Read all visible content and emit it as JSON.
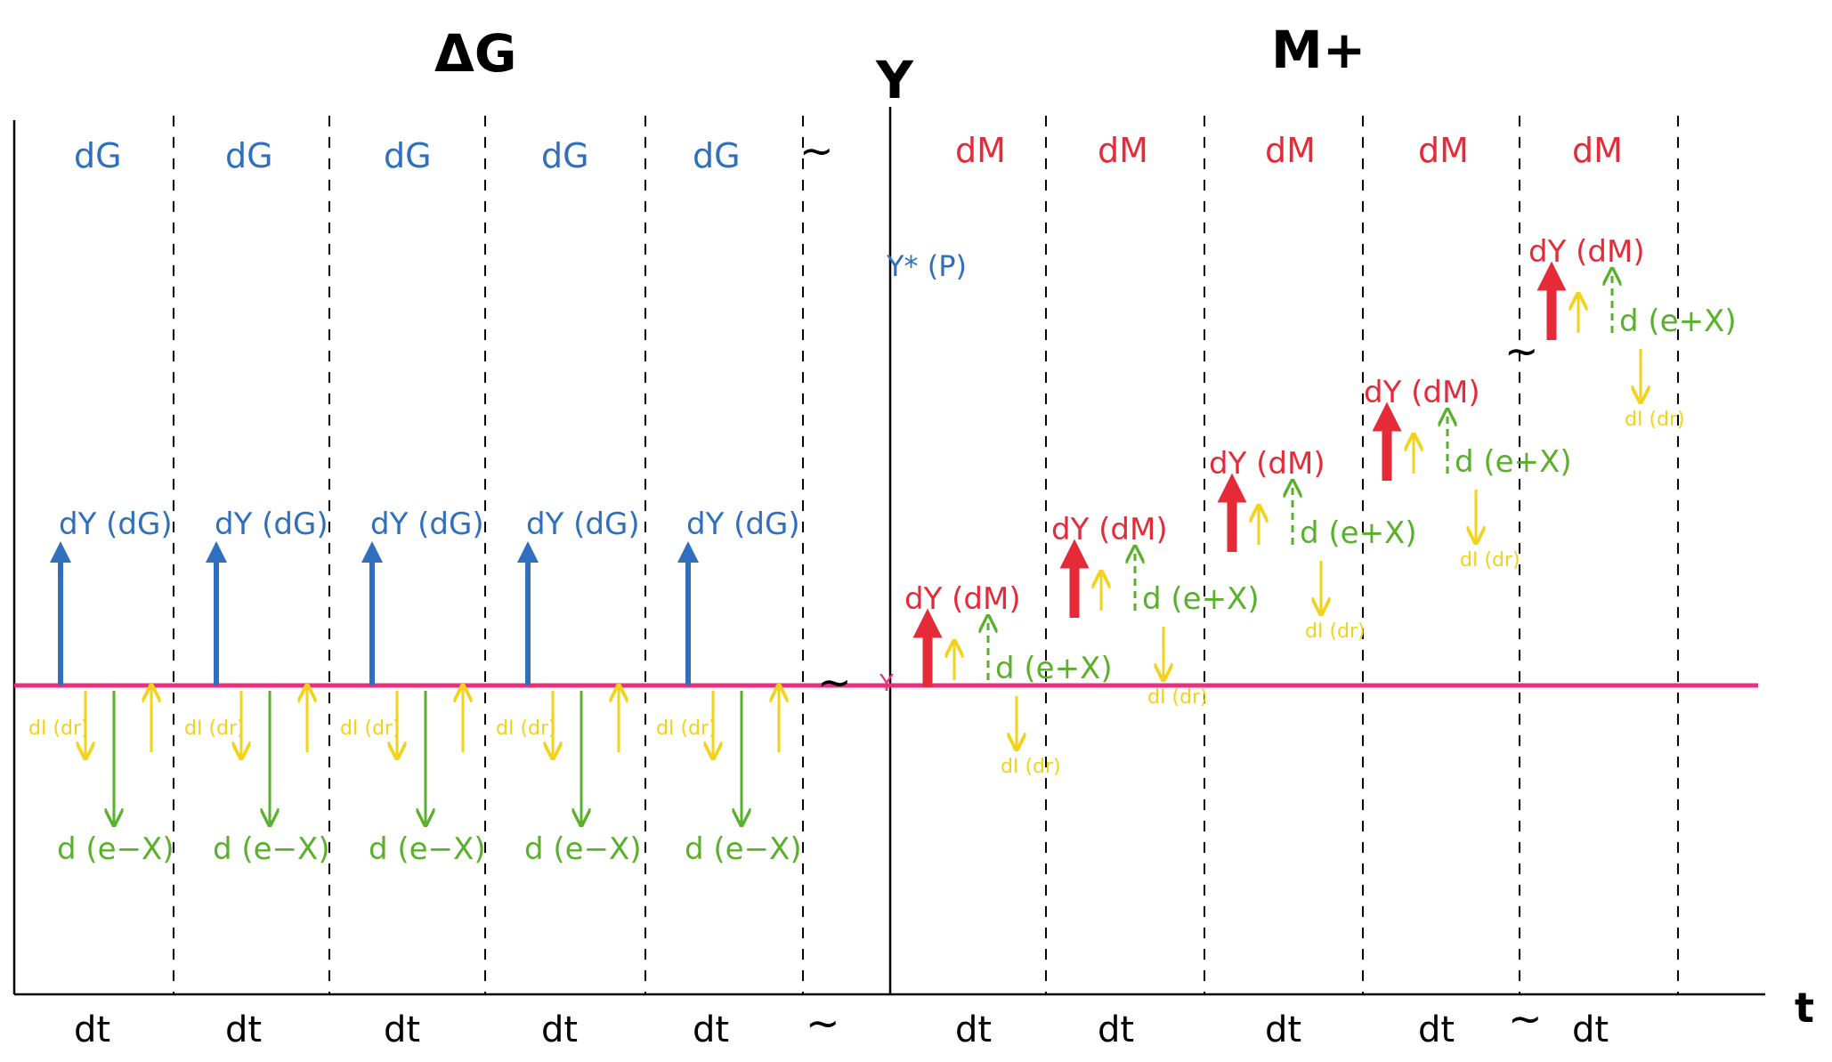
{
  "titles": {
    "left": "ΔG",
    "center": "Y",
    "right": "M+",
    "x_axis": "t"
  },
  "labels": {
    "dG": "dG",
    "dM": "dM",
    "dY_dG": "dY (dG)",
    "dY_dM": "dY (dM)",
    "d_e_minus_X": "d (e−X)",
    "d_e_plus_X": "d (e+X)",
    "dI_dr": "dI (dr)",
    "dt": "dt",
    "tilde": "~",
    "y_star": "Y* (P)",
    "y_small": "Y"
  },
  "colors": {
    "fiscal": "#2f6fbd",
    "monetary": "#e52b38",
    "trade": "#59b12b",
    "investment": "#f2d21a",
    "baseline": "#e8317c",
    "axis": "#000000"
  },
  "structure": {
    "fiscal_periods": 5,
    "monetary_periods": 5
  }
}
